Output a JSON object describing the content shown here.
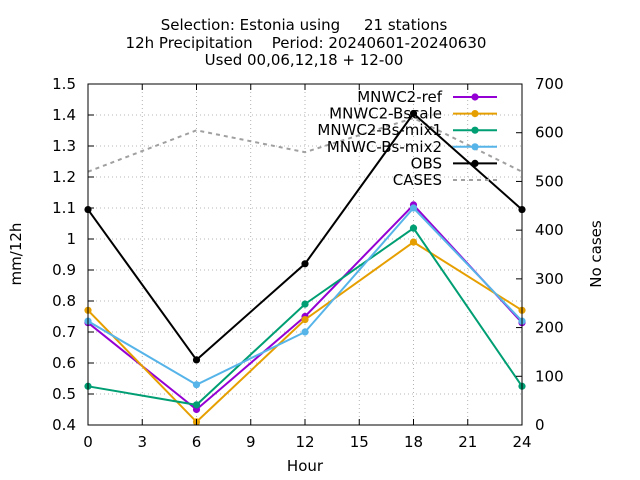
{
  "chart_data": {
    "type": "line",
    "title_lines": [
      "Selection: Estonia using     21 stations",
      "12h Precipitation    Period: 20240601-20240630",
      "Used 00,06,12,18 + 12-00"
    ],
    "xlabel": "Hour",
    "ylabel": "mm/12h",
    "y2label": "No cases",
    "x": [
      0,
      6,
      12,
      18,
      24
    ],
    "xlim": [
      0,
      24
    ],
    "xticks": [
      0,
      3,
      6,
      9,
      12,
      15,
      18,
      21,
      24
    ],
    "ylim": [
      0.4,
      1.5
    ],
    "yticks": [
      0.4,
      0.5,
      0.6,
      0.7,
      0.8,
      0.9,
      1,
      1.1,
      1.2,
      1.3,
      1.4,
      1.5
    ],
    "y2lim": [
      0,
      700
    ],
    "y2ticks": [
      0,
      100,
      200,
      300,
      400,
      500,
      600,
      700
    ],
    "grid": true,
    "legend_position": "top-right",
    "series": [
      {
        "name": "MNWC2-ref",
        "color": "#9400d3",
        "axis": "y",
        "dashed": false,
        "marker": true,
        "values": [
          0.73,
          0.45,
          0.75,
          1.11,
          0.73
        ]
      },
      {
        "name": "MNWC2-Bscale",
        "color": "#e69f00",
        "axis": "y",
        "dashed": false,
        "marker": true,
        "values": [
          0.77,
          0.41,
          0.74,
          0.99,
          0.77
        ]
      },
      {
        "name": "MNWC2-Bs-mix1",
        "color": "#009e73",
        "axis": "y",
        "dashed": false,
        "marker": true,
        "values": [
          0.525,
          0.465,
          0.79,
          1.035,
          0.525
        ]
      },
      {
        "name": "MNWC-Bs-mix2",
        "color": "#56b4e9",
        "axis": "y",
        "dashed": false,
        "marker": true,
        "values": [
          0.735,
          0.53,
          0.7,
          1.1,
          0.735
        ]
      },
      {
        "name": "OBS",
        "color": "#000000",
        "axis": "y",
        "dashed": false,
        "marker": true,
        "values": [
          1.095,
          0.61,
          0.92,
          1.405,
          1.095
        ]
      },
      {
        "name": "CASES",
        "color": "#a0a0a0",
        "axis": "y2",
        "dashed": true,
        "marker": false,
        "values": [
          520,
          605,
          560,
          630,
          520
        ]
      }
    ]
  }
}
